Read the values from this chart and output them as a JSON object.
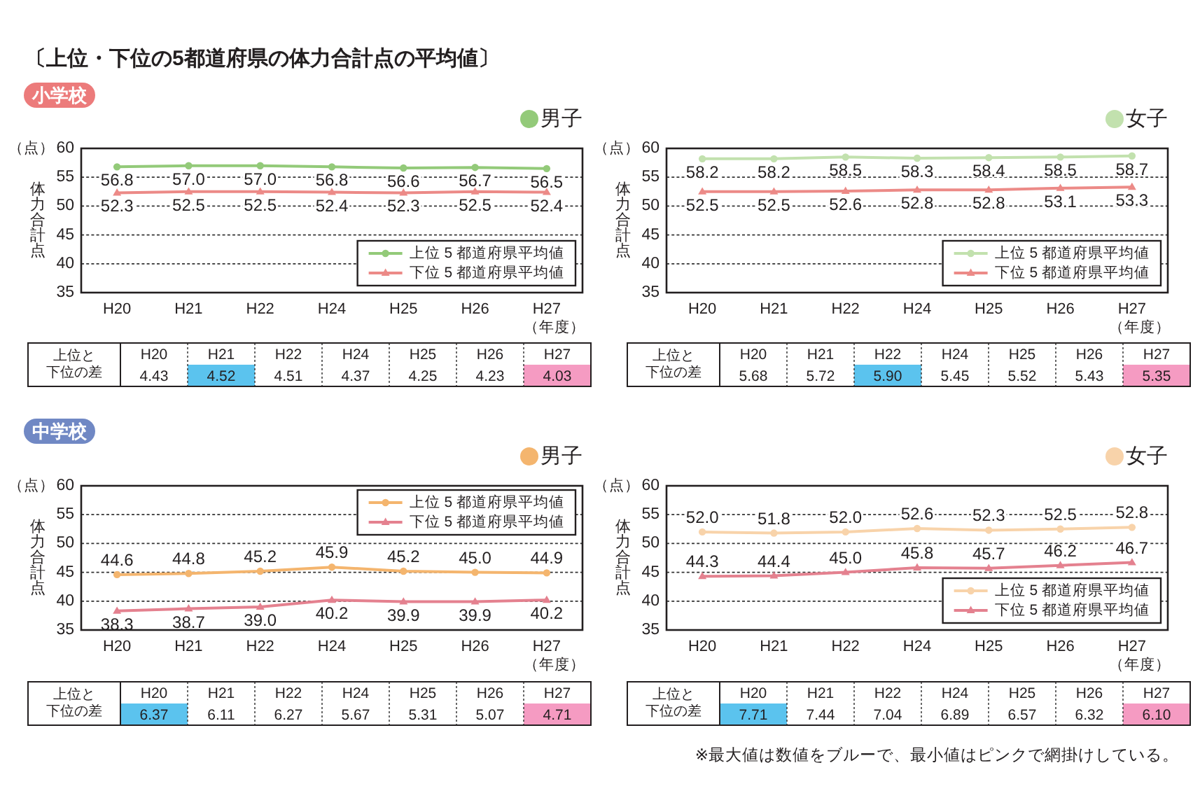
{
  "chart_data": [
    {
      "type": "other",
      "title": "〔上位・下位の5都道府県の体力合計点の平均値〕"
    },
    {
      "type": "other",
      "title": "小学校",
      "color": "#ec7b7b"
    },
    {
      "type": "line",
      "title": "男子",
      "ylabel": "体力合計点",
      "xlabel": "（年度）",
      "annotations": [
        "（点）"
      ],
      "categories": [
        "H20",
        "H21",
        "H22",
        "H24",
        "H25",
        "H26",
        "H27"
      ],
      "ylim": [
        35,
        60
      ],
      "yticks": [
        35,
        40,
        45,
        50,
        55,
        60
      ],
      "grid": "y",
      "legend": "bottom right",
      "series": [
        {
          "name": "上位 5 都道府県平均値",
          "color": "#93ca79",
          "marker": "circle",
          "values": [
            56.8,
            57.0,
            57.0,
            56.8,
            56.6,
            56.7,
            56.5
          ],
          "value_labels": [
            "56.8",
            "57.0",
            "57.0",
            "56.8",
            "56.6",
            "56.7",
            "56.5"
          ]
        },
        {
          "name": "下位 5 都道府県平均値",
          "color": "#ec8a87",
          "marker": "triangle",
          "values": [
            52.3,
            52.5,
            52.5,
            52.4,
            52.3,
            52.5,
            52.4
          ],
          "value_labels": [
            "52.3",
            "52.5",
            "52.5",
            "52.4",
            "52.3",
            "52.5",
            "52.4"
          ]
        }
      ]
    },
    {
      "type": "line",
      "title": "女子",
      "ylabel": "体力合計点",
      "xlabel": "（年度）",
      "annotations": [
        "（点）"
      ],
      "categories": [
        "H20",
        "H21",
        "H22",
        "H24",
        "H25",
        "H26",
        "H27"
      ],
      "ylim": [
        35,
        60
      ],
      "yticks": [
        35,
        40,
        45,
        50,
        55,
        60
      ],
      "grid": "y",
      "legend": "bottom right",
      "series": [
        {
          "name": "上位 5 都道府県平均値",
          "color": "#c2e1ae",
          "marker": "circle",
          "values": [
            58.2,
            58.2,
            58.5,
            58.3,
            58.4,
            58.5,
            58.7
          ],
          "value_labels": [
            "58.2",
            "58.2",
            "58.5",
            "58.3",
            "58.4",
            "58.5",
            "58.7"
          ]
        },
        {
          "name": "下位 5 都道府県平均値",
          "color": "#ec8a87",
          "marker": "triangle",
          "values": [
            52.5,
            52.5,
            52.6,
            52.8,
            52.8,
            53.1,
            53.3
          ],
          "value_labels": [
            "52.5",
            "52.5",
            "52.6",
            "52.8",
            "52.8",
            "53.1",
            "53.3"
          ]
        }
      ]
    },
    {
      "type": "other",
      "ylabel": "上位と下位の差",
      "categories": [
        "H20",
        "H21",
        "H22",
        "H24",
        "H25",
        "H26",
        "H27"
      ],
      "values": [
        4.43,
        4.52,
        4.51,
        4.37,
        4.25,
        4.23,
        4.03
      ],
      "value_labels": [
        "4.43",
        "4.52",
        "4.51",
        "4.37",
        "4.25",
        "4.23",
        "4.03"
      ],
      "colors": [
        "#ffffff",
        "#5bc3ee",
        "#ffffff",
        "#ffffff",
        "#ffffff",
        "#ffffff",
        "#f59bc2"
      ]
    },
    {
      "type": "other",
      "ylabel": "上位と下位の差",
      "categories": [
        "H20",
        "H21",
        "H22",
        "H24",
        "H25",
        "H26",
        "H27"
      ],
      "values": [
        5.68,
        5.72,
        5.9,
        5.45,
        5.52,
        5.43,
        5.35
      ],
      "value_labels": [
        "5.68",
        "5.72",
        "5.90",
        "5.45",
        "5.52",
        "5.43",
        "5.35"
      ],
      "colors": [
        "#ffffff",
        "#ffffff",
        "#5bc3ee",
        "#ffffff",
        "#ffffff",
        "#ffffff",
        "#f59bc2"
      ]
    },
    {
      "type": "other",
      "title": "中学校",
      "color": "#7088c4"
    },
    {
      "type": "line",
      "title": "男子",
      "ylabel": "体力合計点",
      "xlabel": "（年度）",
      "annotations": [
        "（点）"
      ],
      "categories": [
        "H20",
        "H21",
        "H22",
        "H24",
        "H25",
        "H26",
        "H27"
      ],
      "ylim": [
        35,
        60
      ],
      "yticks": [
        35,
        40,
        45,
        50,
        55,
        60
      ],
      "grid": "y",
      "legend": "top right",
      "series": [
        {
          "name": "上位 5 都道府県平均値",
          "color": "#f4b56e",
          "marker": "circle",
          "values": [
            44.6,
            44.8,
            45.2,
            45.9,
            45.2,
            45.0,
            44.9
          ],
          "value_labels": [
            "44.6",
            "44.8",
            "45.2",
            "45.9",
            "45.2",
            "45.0",
            "44.9"
          ]
        },
        {
          "name": "下位 5 都道府県平均値",
          "color": "#e4818f",
          "marker": "triangle",
          "values": [
            38.3,
            38.7,
            39.0,
            40.2,
            39.9,
            39.9,
            40.2
          ],
          "value_labels": [
            "38.3",
            "38.7",
            "39.0",
            "40.2",
            "39.9",
            "39.9",
            "40.2"
          ]
        }
      ]
    },
    {
      "type": "line",
      "title": "女子",
      "ylabel": "体力合計点",
      "xlabel": "（年度）",
      "annotations": [
        "（点）"
      ],
      "categories": [
        "H20",
        "H21",
        "H22",
        "H24",
        "H25",
        "H26",
        "H27"
      ],
      "ylim": [
        35,
        60
      ],
      "yticks": [
        35,
        40,
        45,
        50,
        55,
        60
      ],
      "grid": "y",
      "legend": "bottom right",
      "series": [
        {
          "name": "上位 5 都道府県平均値",
          "color": "#f8d3aa",
          "marker": "circle",
          "values": [
            52.0,
            51.8,
            52.0,
            52.6,
            52.3,
            52.5,
            52.8
          ],
          "value_labels": [
            "52.0",
            "51.8",
            "52.0",
            "52.6",
            "52.3",
            "52.5",
            "52.8"
          ]
        },
        {
          "name": "下位 5 都道府県平均値",
          "color": "#e4818f",
          "marker": "triangle",
          "values": [
            44.3,
            44.4,
            45.0,
            45.8,
            45.7,
            46.2,
            46.7
          ],
          "value_labels": [
            "44.3",
            "44.4",
            "45.0",
            "45.8",
            "45.7",
            "46.2",
            "46.7"
          ]
        }
      ]
    },
    {
      "type": "other",
      "ylabel": "上位と下位の差",
      "categories": [
        "H20",
        "H21",
        "H22",
        "H24",
        "H25",
        "H26",
        "H27"
      ],
      "values": [
        6.37,
        6.11,
        6.27,
        5.67,
        5.31,
        5.07,
        4.71
      ],
      "value_labels": [
        "6.37",
        "6.11",
        "6.27",
        "5.67",
        "5.31",
        "5.07",
        "4.71"
      ],
      "colors": [
        "#5bc3ee",
        "#ffffff",
        "#ffffff",
        "#ffffff",
        "#ffffff",
        "#ffffff",
        "#f59bc2"
      ]
    },
    {
      "type": "other",
      "ylabel": "上位と下位の差",
      "categories": [
        "H20",
        "H21",
        "H22",
        "H24",
        "H25",
        "H26",
        "H27"
      ],
      "values": [
        7.71,
        7.44,
        7.04,
        6.89,
        6.57,
        6.32,
        6.1
      ],
      "value_labels": [
        "7.71",
        "7.44",
        "7.04",
        "6.89",
        "6.57",
        "6.32",
        "6.10"
      ],
      "colors": [
        "#5bc3ee",
        "#ffffff",
        "#ffffff",
        "#ffffff",
        "#ffffff",
        "#ffffff",
        "#f59bc2"
      ]
    },
    {
      "type": "other",
      "annotations": [
        "※最大値は数値をブルーで、最小値はピンクで網掛けしている。"
      ]
    }
  ]
}
